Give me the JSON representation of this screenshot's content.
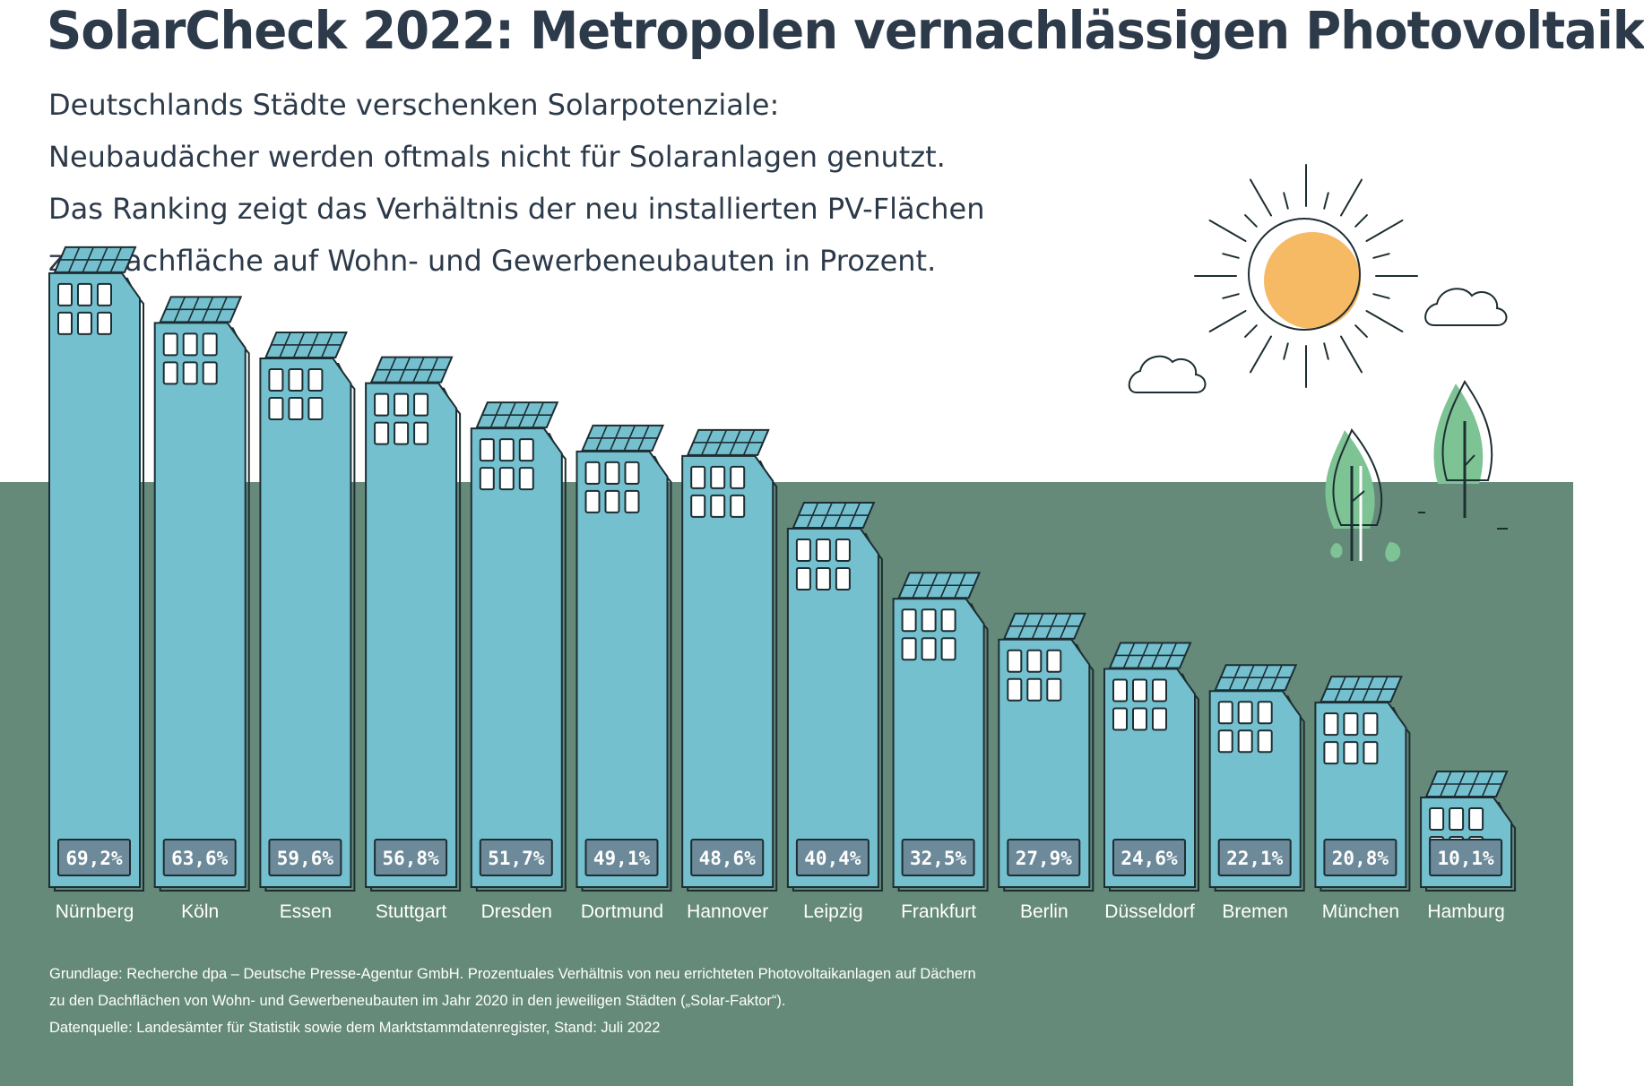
{
  "title": "SolarCheck 2022: Metropolen vernachlässigen Photovoltaik",
  "subtitle": [
    "Deutschlands Städte verschenken Solarpotenziale:",
    "Neubaudächer werden oftmals nicht für Solaranlagen genutzt.",
    "Das Ranking zeigt das Verhältnis der neu installierten PV-Flächen",
    "zur Dachfläche auf Wohn- und Gewerbeneubauten in Prozent."
  ],
  "footnote": [
    "Grundlage: Recherche dpa – Deutsche Presse-Agentur GmbH. Prozentuales Verhältnis von neu errichteten Photovoltaikanlagen auf Dächern",
    "zu den Dachflächen von Wohn- und Gewerbeneubauten im Jahr 2020 in den jeweiligen Städten („Solar-Faktor“).",
    "Datenquelle: Landesämter für Statistik sowie dem Marktstammdatenregister, Stand: Juli 2022"
  ],
  "colors": {
    "ground": "#658a79",
    "building": "#75c0cf",
    "outline": "#1d2e33",
    "label_box": "#6c8a9a",
    "sun": "#f6b964",
    "tree": "#7dc394"
  },
  "icons": [
    "building-icon",
    "solar-panel-icon",
    "sun-icon",
    "cloud-icon",
    "tree-icon"
  ],
  "chart_data": {
    "type": "bar",
    "categories": [
      "Nürnberg",
      "Köln",
      "Essen",
      "Stuttgart",
      "Dresden",
      "Dortmund",
      "Hannover",
      "Leipzig",
      "Frankfurt",
      "Berlin",
      "Düsseldorf",
      "Bremen",
      "München",
      "Hamburg"
    ],
    "values": [
      69.2,
      63.6,
      59.6,
      56.8,
      51.7,
      49.1,
      48.6,
      40.4,
      32.5,
      27.9,
      24.6,
      22.1,
      20.8,
      10.1
    ],
    "value_labels": [
      "69,2%",
      "63,6%",
      "59,6%",
      "56,8%",
      "51,7%",
      "49,1%",
      "48,6%",
      "40,4%",
      "32,5%",
      "27,9%",
      "24,6%",
      "22,1%",
      "20,8%",
      "10,1%"
    ],
    "ylim": [
      0,
      70
    ]
  }
}
